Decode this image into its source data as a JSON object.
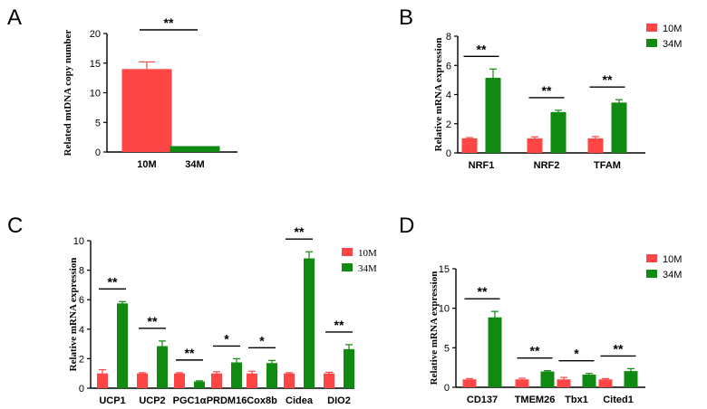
{
  "colors": {
    "s10M": "#ff4646",
    "s34M": "#118a11"
  },
  "chart_data": [
    {
      "panel": "A",
      "type": "bar",
      "ylabel": "Related mtDNA copy number",
      "ylim": [
        0,
        20
      ],
      "yticks": [
        0,
        5,
        10,
        15,
        20
      ],
      "categories": [
        "10M",
        "34M"
      ],
      "series": [
        {
          "name": "values",
          "values": [
            14.0,
            1.0
          ],
          "errors": [
            1.2,
            0
          ],
          "colors": [
            "#ff4646",
            "#118a11"
          ]
        }
      ],
      "significance": [
        "**"
      ],
      "legend": []
    },
    {
      "panel": "B",
      "type": "bar",
      "ylabel": "Relative mRNA expression",
      "ylim": [
        0,
        8
      ],
      "yticks": [
        0,
        2,
        4,
        6,
        8
      ],
      "categories": [
        "NRF1",
        "NRF2",
        "TFAM"
      ],
      "series": [
        {
          "name": "10M",
          "values": [
            1.0,
            1.0,
            1.0
          ],
          "errors": [
            0.05,
            0.1,
            0.12
          ],
          "color": "#ff4646"
        },
        {
          "name": "34M",
          "values": [
            5.15,
            2.8,
            3.45
          ],
          "errors": [
            0.6,
            0.12,
            0.2
          ],
          "color": "#118a11"
        }
      ],
      "significance": [
        "**",
        "**",
        "**"
      ],
      "legend": [
        "10M",
        "34M"
      ]
    },
    {
      "panel": "C",
      "type": "bar",
      "ylabel": "Relative mRNA expression",
      "ylim": [
        0,
        10
      ],
      "yticks": [
        0,
        2,
        4,
        6,
        8,
        10
      ],
      "categories": [
        "UCP1",
        "UCP2",
        "PGC1α",
        "PRDM16",
        "Cox8b",
        "Cidea",
        "DIO2"
      ],
      "series": [
        {
          "name": "10M",
          "values": [
            1.0,
            1.0,
            1.0,
            1.0,
            1.0,
            1.0,
            1.0
          ],
          "errors": [
            0.25,
            0.05,
            0.05,
            0.12,
            0.15,
            0.05,
            0.08
          ],
          "color": "#ff4646"
        },
        {
          "name": "34M",
          "values": [
            5.75,
            2.85,
            0.45,
            1.75,
            1.7,
            8.8,
            2.65
          ],
          "errors": [
            0.12,
            0.35,
            0.05,
            0.25,
            0.18,
            0.45,
            0.3
          ],
          "color": "#118a11"
        }
      ],
      "significance": [
        "**",
        "**",
        "**",
        "*",
        "*",
        "**",
        "**"
      ],
      "legend": [
        "10M",
        "34M"
      ]
    },
    {
      "panel": "D",
      "type": "bar",
      "ylabel": "Relative mRNA expression",
      "ylim": [
        0,
        15
      ],
      "yticks": [
        0,
        5,
        10,
        15
      ],
      "categories": [
        "CD137",
        "TMEM26",
        "Tbx1",
        "Cited1"
      ],
      "series": [
        {
          "name": "10M",
          "values": [
            1.0,
            1.0,
            1.0,
            1.0
          ],
          "errors": [
            0.1,
            0.15,
            0.25,
            0.1
          ],
          "color": "#ff4646"
        },
        {
          "name": "34M",
          "values": [
            8.85,
            2.0,
            1.6,
            2.05
          ],
          "errors": [
            0.75,
            0.1,
            0.15,
            0.3
          ],
          "color": "#118a11"
        }
      ],
      "significance": [
        "**",
        "**",
        "*",
        "**"
      ],
      "legend": [
        "10M",
        "34M"
      ]
    }
  ]
}
